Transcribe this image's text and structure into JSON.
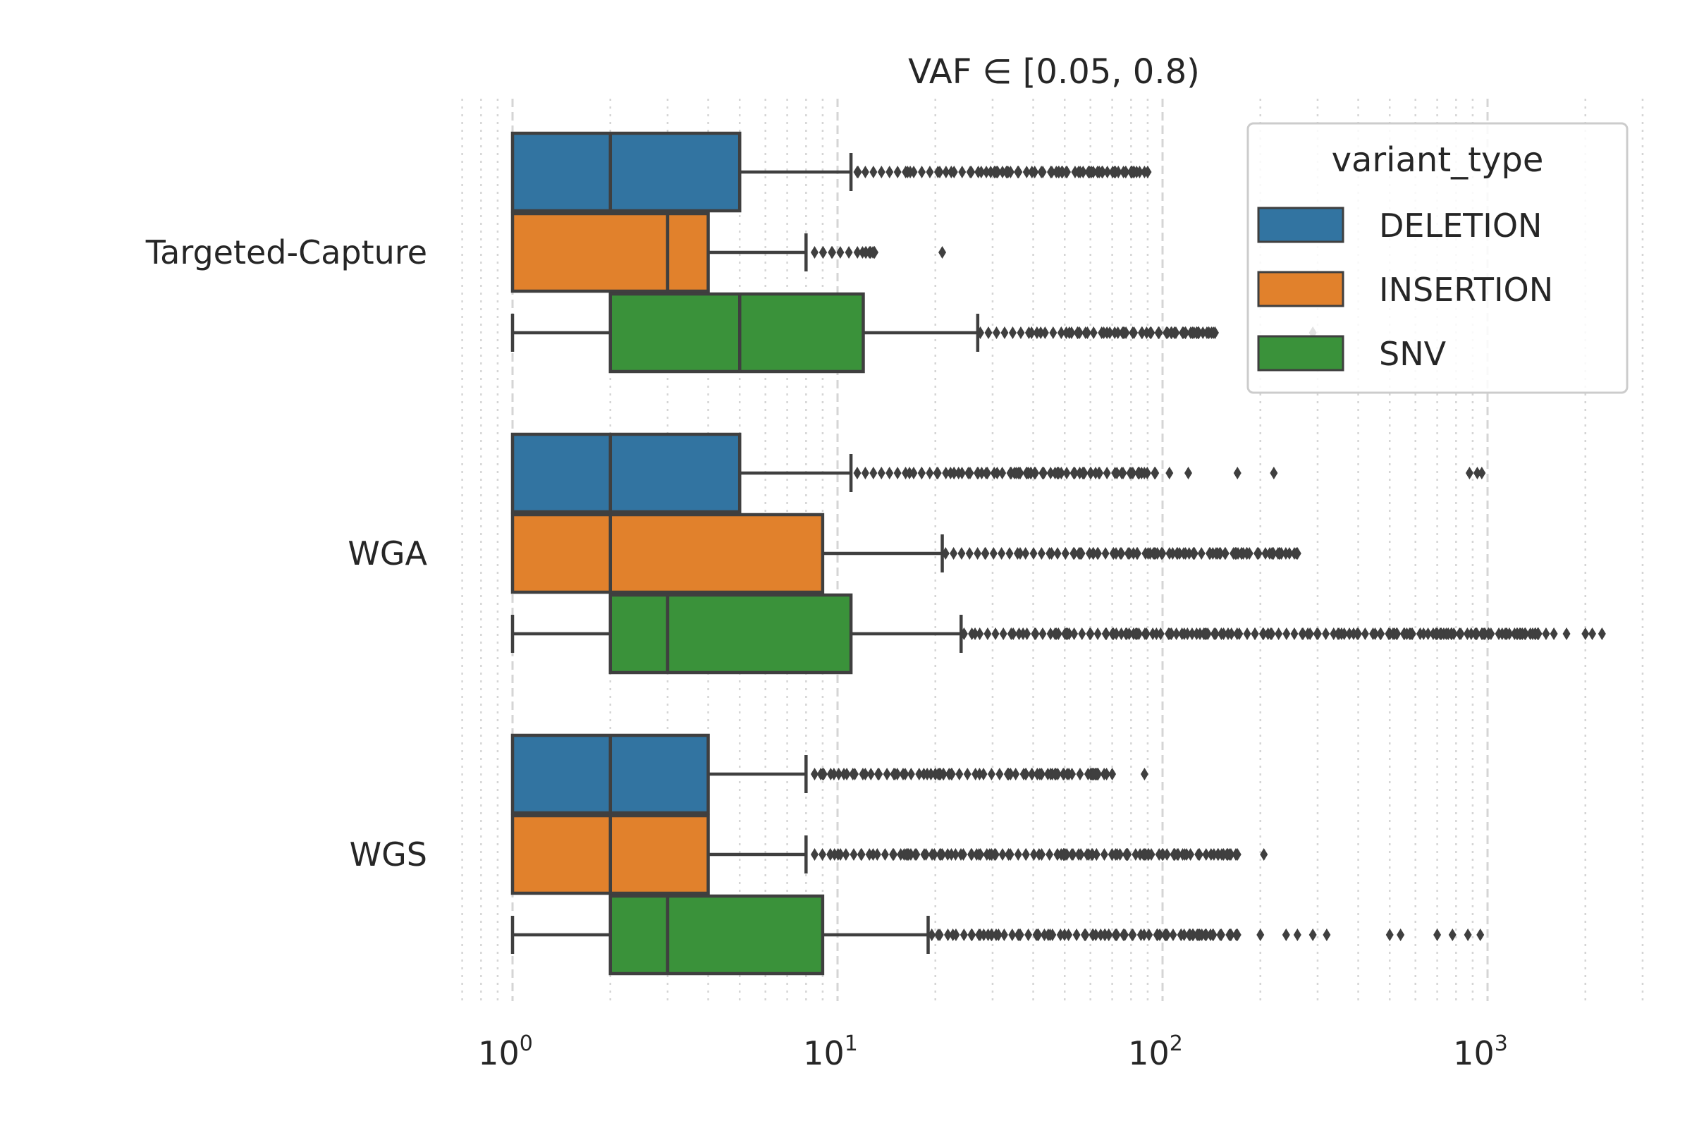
{
  "chart_data": {
    "type": "boxplot",
    "orientation": "horizontal",
    "title": "VAF ∈ [0.05, 0.8)",
    "xlabel": "",
    "ylabel": "",
    "x_scale": "log",
    "xlim": [
      0.7,
      3200
    ],
    "x_ticks": [
      {
        "base": "10",
        "exp": "0",
        "value": 1
      },
      {
        "base": "10",
        "exp": "1",
        "value": 10
      },
      {
        "base": "10",
        "exp": "2",
        "value": 100
      },
      {
        "base": "10",
        "exp": "3",
        "value": 1000
      }
    ],
    "grid": {
      "major": "dashed",
      "minor": "dotted",
      "axis": "x"
    },
    "categories": [
      "Targeted-Capture",
      "WGA",
      "WGS"
    ],
    "legend": {
      "title": "variant_type",
      "position": "top-right"
    },
    "series": [
      {
        "name": "DELETION",
        "color": "#3274a1",
        "boxes": [
          {
            "whisker_low": 1,
            "q1": 1,
            "median": 2,
            "q3": 5,
            "whisker_high": 11,
            "outlier_range": [
              11.5,
              90
            ],
            "outliers_sparse": [
              77,
              80,
              88,
              90
            ]
          },
          {
            "whisker_low": 1,
            "q1": 1,
            "median": 2,
            "q3": 5,
            "whisker_high": 11,
            "outlier_range": [
              11.5,
              95
            ],
            "outliers_sparse": [
              105,
              120,
              170,
              220,
              880,
              930,
              960
            ]
          },
          {
            "whisker_low": 1,
            "q1": 1,
            "median": 2,
            "q3": 4,
            "whisker_high": 8,
            "outlier_range": [
              8.5,
              70
            ],
            "outliers_sparse": [
              88
            ]
          }
        ]
      },
      {
        "name": "INSERTION",
        "color": "#e1812c",
        "boxes": [
          {
            "whisker_low": 1,
            "q1": 1,
            "median": 3,
            "q3": 4,
            "whisker_high": 8,
            "outlier_range": [
              8.5,
              13
            ],
            "outliers_sparse": [
              21
            ]
          },
          {
            "whisker_low": 1,
            "q1": 1,
            "median": 2,
            "q3": 9,
            "whisker_high": 21,
            "outlier_range": [
              21.5,
              260
            ],
            "outliers_sparse": []
          },
          {
            "whisker_low": 1,
            "q1": 1,
            "median": 2,
            "q3": 4,
            "whisker_high": 8,
            "outlier_range": [
              8.5,
              170
            ],
            "outliers_sparse": [
              205
            ]
          }
        ]
      },
      {
        "name": "SNV",
        "color": "#3a923a",
        "boxes": [
          {
            "whisker_low": 1,
            "q1": 2,
            "median": 5,
            "q3": 12,
            "whisker_high": 27,
            "outlier_range": [
              27.5,
              145
            ],
            "outliers_sparse": [
              125,
              145,
              290
            ]
          },
          {
            "whisker_low": 1,
            "q1": 2,
            "median": 3,
            "q3": 11,
            "whisker_high": 24,
            "outlier_range": [
              24.5,
              1600
            ],
            "outliers_sparse": [
              1750,
              2000,
              2100,
              2250
            ]
          },
          {
            "whisker_low": 1,
            "q1": 2,
            "median": 3,
            "q3": 9,
            "whisker_high": 19,
            "outlier_range": [
              19.5,
              170
            ],
            "outliers_sparse": [
              200,
              240,
              260,
              290,
              320,
              500,
              540,
              700,
              780,
              870,
              950
            ]
          }
        ]
      }
    ]
  }
}
